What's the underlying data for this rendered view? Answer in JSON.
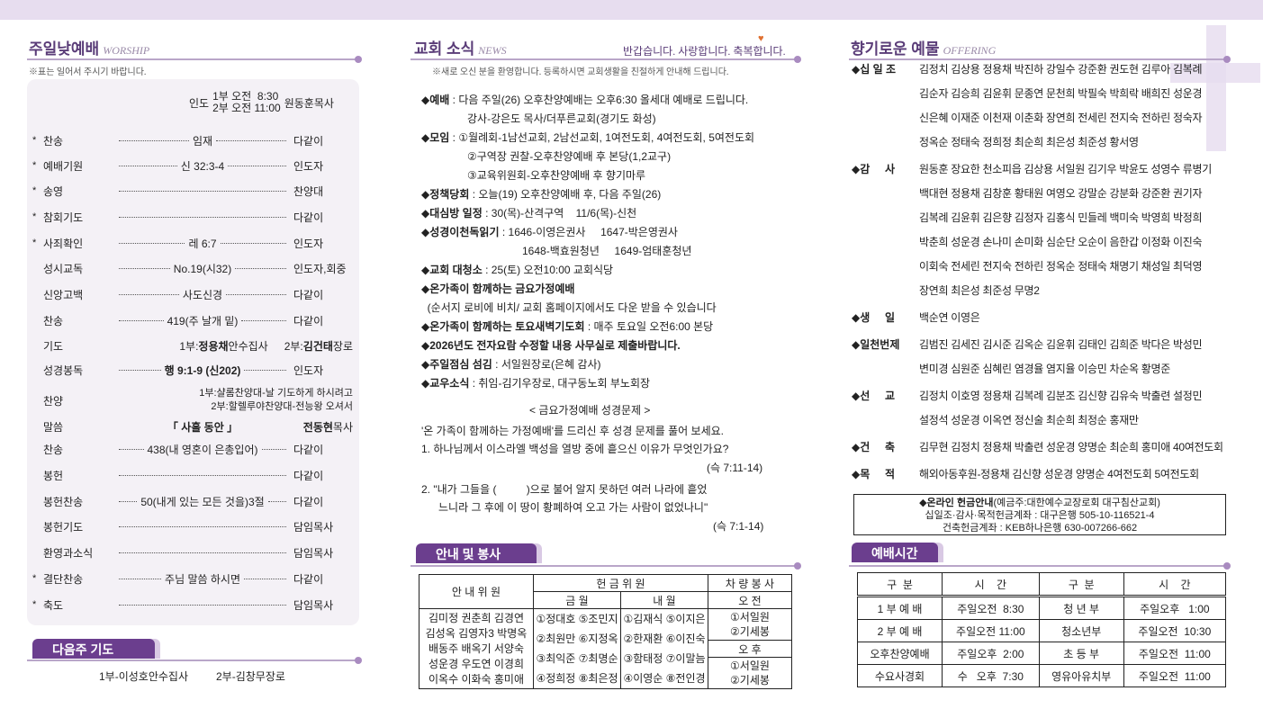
{
  "colors": {
    "accent": "#6b3e8e",
    "band": "#e7ddef",
    "box": "#f4f1f6"
  },
  "worship": {
    "title": "주일낮예배",
    "title_en": "WORSHIP",
    "note": "※표는 일어서 주시기 바랍니다.",
    "header": {
      "leader": "인도",
      "s1": "1부 오전  8:30",
      "s2": "2부 오전 11:00",
      "pastor": "원동훈목사"
    },
    "rows": [
      {
        "star": "*",
        "label": "찬송",
        "middle": "임재",
        "person": "다같이",
        "dots": true
      },
      {
        "star": "*",
        "label": "예배기원",
        "middle": "신 32:3-4",
        "person": "인도자",
        "dots": true
      },
      {
        "star": "*",
        "label": "송영",
        "middle": "",
        "person": "찬양대",
        "dots": true
      },
      {
        "star": "*",
        "label": "참회기도",
        "middle": "",
        "person": "다같이",
        "dots": true
      },
      {
        "star": "*",
        "label": "사죄확인",
        "middle": "레 6:7",
        "person": "인도자",
        "dots": true
      },
      {
        "star": "",
        "label": "성시교독",
        "middle": "No.19(시32)",
        "person": "인도자,회중",
        "dots": true
      },
      {
        "star": "",
        "label": "신앙고백",
        "middle": "사도신경",
        "person": "다같이",
        "dots": true
      },
      {
        "star": "",
        "label": "찬송",
        "middle": "419(주 날개 밑)",
        "person": "다같이",
        "dots": true
      },
      {
        "star": "",
        "label": "기도",
        "prayer1_pre": "1부:",
        "prayer1_name": "정용채",
        "prayer1_post": "안수집사",
        "prayer2_pre": "2부:",
        "prayer2_name": "김건태",
        "prayer2_post": "장로"
      },
      {
        "star": "",
        "label": "성경봉독",
        "middle": "행 9:1-9 (신202)",
        "person": "인도자",
        "dots": true,
        "bold": true
      },
      {
        "star": "",
        "label": "찬양",
        "choir1": "1부:샬롬찬양대-날 기도하게 하시려고",
        "choir2": "2부:할렐루야찬양대-전능왕 오셔서"
      },
      {
        "star": "",
        "label": "말씀",
        "middle": "「 사흘 동안 」",
        "person_bold": "전동현",
        "person_rest": "목사",
        "dots": false,
        "bold": true
      },
      {
        "star": "",
        "label": "찬송",
        "middle": "438(내 영혼이 은총입어)",
        "person": "다같이",
        "dots": true
      },
      {
        "star": "",
        "label": "봉헌",
        "middle": "",
        "person": "다같이",
        "dots": true
      },
      {
        "star": "",
        "label": "봉헌찬송",
        "middle": "50(내게 있는 모든 것을)3절",
        "person": "다같이",
        "dots": true
      },
      {
        "star": "",
        "label": "봉헌기도",
        "middle": "",
        "person": "담임목사",
        "dots": true
      },
      {
        "star": "",
        "label": "환영과소식",
        "middle": "",
        "person": "담임목사",
        "dots": true
      },
      {
        "star": "*",
        "label": "결단찬송",
        "middle": "주님 말씀 하시면",
        "person": "다같이",
        "dots": true
      },
      {
        "star": "*",
        "label": "축도",
        "middle": "",
        "person": "담임목사",
        "dots": true
      }
    ]
  },
  "next_prayer": {
    "title": "다음주 기도",
    "p1": "1부-이성호안수집사",
    "p2": "2부-김창무장로"
  },
  "news": {
    "title": "교회 소식",
    "title_en": "NEWS",
    "slogan": "반갑습니다. 사랑합니다. 축복합니다.",
    "note": "※새로 오신 분을 환영합니다. 등록하시면 교회생활을 친절하게 안내해 드립니다.",
    "items": [
      {
        "label": "◆예배",
        "text": " : 다음 주일(26) 오후찬양예배는 오후6:30 올세대 예배로 드립니다.",
        "more": [
          "강사-강은도 목사/더푸른교회(경기도 화성)"
        ]
      },
      {
        "label": "◆모임",
        "text": " : ①월례회-1남선교회, 2남선교회, 1여전도회, 4여전도회, 5여전도회",
        "more": [
          "②구역장 권찰-오후찬양예배 후 본당(1,2교구)",
          "③교육위원회-오후찬양예배 후 향기마루"
        ]
      },
      {
        "label": "◆정책당회",
        "text": " : 오늘(19) 오후찬양예배 후, 다음 주일(26)"
      },
      {
        "label": "◆대심방 일정",
        "text": " : 30(목)-산격구역    11/6(목)-신천"
      },
      {
        "label": "◆성경이천독읽기",
        "text": " : 1646-이영은권사     1647-박은영권사",
        "more": [
          "1648-백효원청년     1649-엄태훈청년"
        ],
        "indent": 112
      },
      {
        "label": "◆교회 대청소",
        "text": " : 25(토) 오전10:00 교회식당"
      },
      {
        "label": "◆온가족이 함께하는 금요가정예배",
        "text": ""
      },
      {
        "label": "",
        "text": "  (순서지 로비에 비치/ 교회 홈페이지에서도 다운 받을 수 있습니다"
      },
      {
        "label": "◆온가족이 함께하는 토요새벽기도회",
        "text": " : 매주 토요일 오전6:00 본당"
      },
      {
        "label": "◆2026년도 전자요람 수정할 내용 사무실로 제출바랍니다.",
        "text": ""
      },
      {
        "label": "◆주일점심 섬김",
        "text": " : 서일원장로(은혜 감사)"
      },
      {
        "label": "◆교우소식",
        "text": " : 취임-김기우장로, 대구동노회 부노회장"
      }
    ],
    "quiz": {
      "title": "< 금요가정예배 성경문제 >",
      "intro": "'온 가족이 함께하는 가정예배'를 드리신 후 성경 문제를 풀어 보세요.",
      "q1": "1. 하나님께서 이스라엘 백성을 열방 중에 흩으신 이유가 무엇인가요?",
      "q1_ref": "(슥 7:11-14)",
      "q2a": "2. \"내가 그들을 (          )으로 불어 알지 못하던 여러 나라에 흩었",
      "q2b": "느니라 그 후에 이 땅이 황폐하여 오고 가는 사람이 없었나니\"",
      "q2_ref": "(슥 7:1-14)"
    }
  },
  "service": {
    "title": "안내 및 봉사",
    "h_usher": "안 내 위 원",
    "h_offering": "헌 금 위 원",
    "h_car": "차 량 봉 사",
    "h_this": "금 월",
    "h_next": "내 월",
    "h_am": "오 전",
    "h_pm": "오 후",
    "ushers": [
      "김미정 권춘희 김경연",
      "김성옥 김영자3 박명옥",
      "배동주 배옥기 서양숙",
      "성운경 우도연 이경희",
      "이옥수 이화숙 홍미애"
    ],
    "this_month": [
      "①정대호 ⑤조민지",
      "②최원만 ⑥지정옥",
      "③최익준 ⑦최명순",
      "④정희정 ⑧최은정"
    ],
    "next_month": [
      "①김재식 ⑤이지은",
      "②한재환 ⑥이진숙",
      "③함태정 ⑦이말늠",
      "④이영순 ⑧전인경"
    ],
    "car_am": [
      "①서일원",
      "②기세봉"
    ],
    "car_pm": [
      "①서일원",
      "②기세봉"
    ]
  },
  "offering": {
    "title": "향기로운 예물",
    "title_en": "OFFERING",
    "groups": [
      {
        "label": "◆십 일 조",
        "lines": [
          "김정치 김상용 정용채 박진하 강일수 강준환 권도현 김루아 김복례",
          "김순자 김승희 김윤휘 문종연 문천희 박필숙 박희락 배희진 성운경",
          "신은혜 이재준 이천재 이춘화 장연희 전세린 전지숙 전하린 정숙자",
          "정옥순 정태숙 정희정 최순희 최은성 최준성 황서영"
        ]
      },
      {
        "label": "◆감     사",
        "lines": [
          "원동훈 장요한 천소피읍 김상용 서일원 김기우 박윤도 성영수 류병기",
          "백대현 정용채 김창훈 황태원 여영오 강말순 강분화 강준환 권기자",
          "김복례 김윤휘 김은향 김정자 김홍식 민들레 백미숙 박영희 박정희",
          "박춘희 성운경 손나미 손미화 심순단 오순이 음한갑 이정화 이진숙",
          "이회숙 전세린 전지숙 전하린 정옥순 정태숙 채명기 채성일 최덕영",
          "장연희 최은성 최준성 무명2"
        ]
      },
      {
        "label": "◆생     일",
        "lines": [
          "백순연 이영은"
        ]
      },
      {
        "label": "◆일천번제",
        "lines": [
          "김범진 김세진 김시준 김옥순 김윤휘 김태인 김희준 박다은 박성민",
          "변미경 심원준 심혜린 염경율 염지율 이승민 차순옥 황명준"
        ]
      },
      {
        "label": "◆선     교",
        "lines": [
          "김정치 이호영 정용채 김복례 김분조 김신향 김유숙 박출련 설정민",
          "설정석 성운경 이옥연 정신술 최순희 최정순 홍재만"
        ]
      },
      {
        "label": "◆건     축",
        "lines": [
          "김무현 김정치 정용채 박출련 성운경 양명순 최순희 홍미애 40여전도회"
        ]
      },
      {
        "label": "◆목     적",
        "lines": [
          "해외아동후원-정용채 김신향 성운경 양명순 4여전도회 5여전도회"
        ]
      }
    ],
    "account": {
      "title": "◆온라인 헌금안내",
      "owner": "(예금주:대한예수교장로회 대구침산교회)",
      "line1": "십일조·감사·목적헌금계좌 : 대구은행 505-10-116521-4",
      "line2": "건축헌금계좌 : KEB하나은행 630-007266-662"
    }
  },
  "times": {
    "title": "예배시간",
    "headers": [
      "구  분",
      "시    간",
      "구  분",
      "시    간"
    ],
    "rows": [
      [
        "1 부 예 배",
        "주일오전  8:30",
        "청 년 부",
        "주일오후   1:00"
      ],
      [
        "2 부 예 배",
        "주일오전 11:00",
        "청소년부",
        "주일오전  10:30"
      ],
      [
        "오후찬양예배",
        "주일오후  2:00",
        "초 등 부",
        "주일오전  11:00"
      ],
      [
        "수요사경회",
        "수   오후  7:30",
        "영유아유치부",
        "주일오전  11:00"
      ]
    ]
  }
}
